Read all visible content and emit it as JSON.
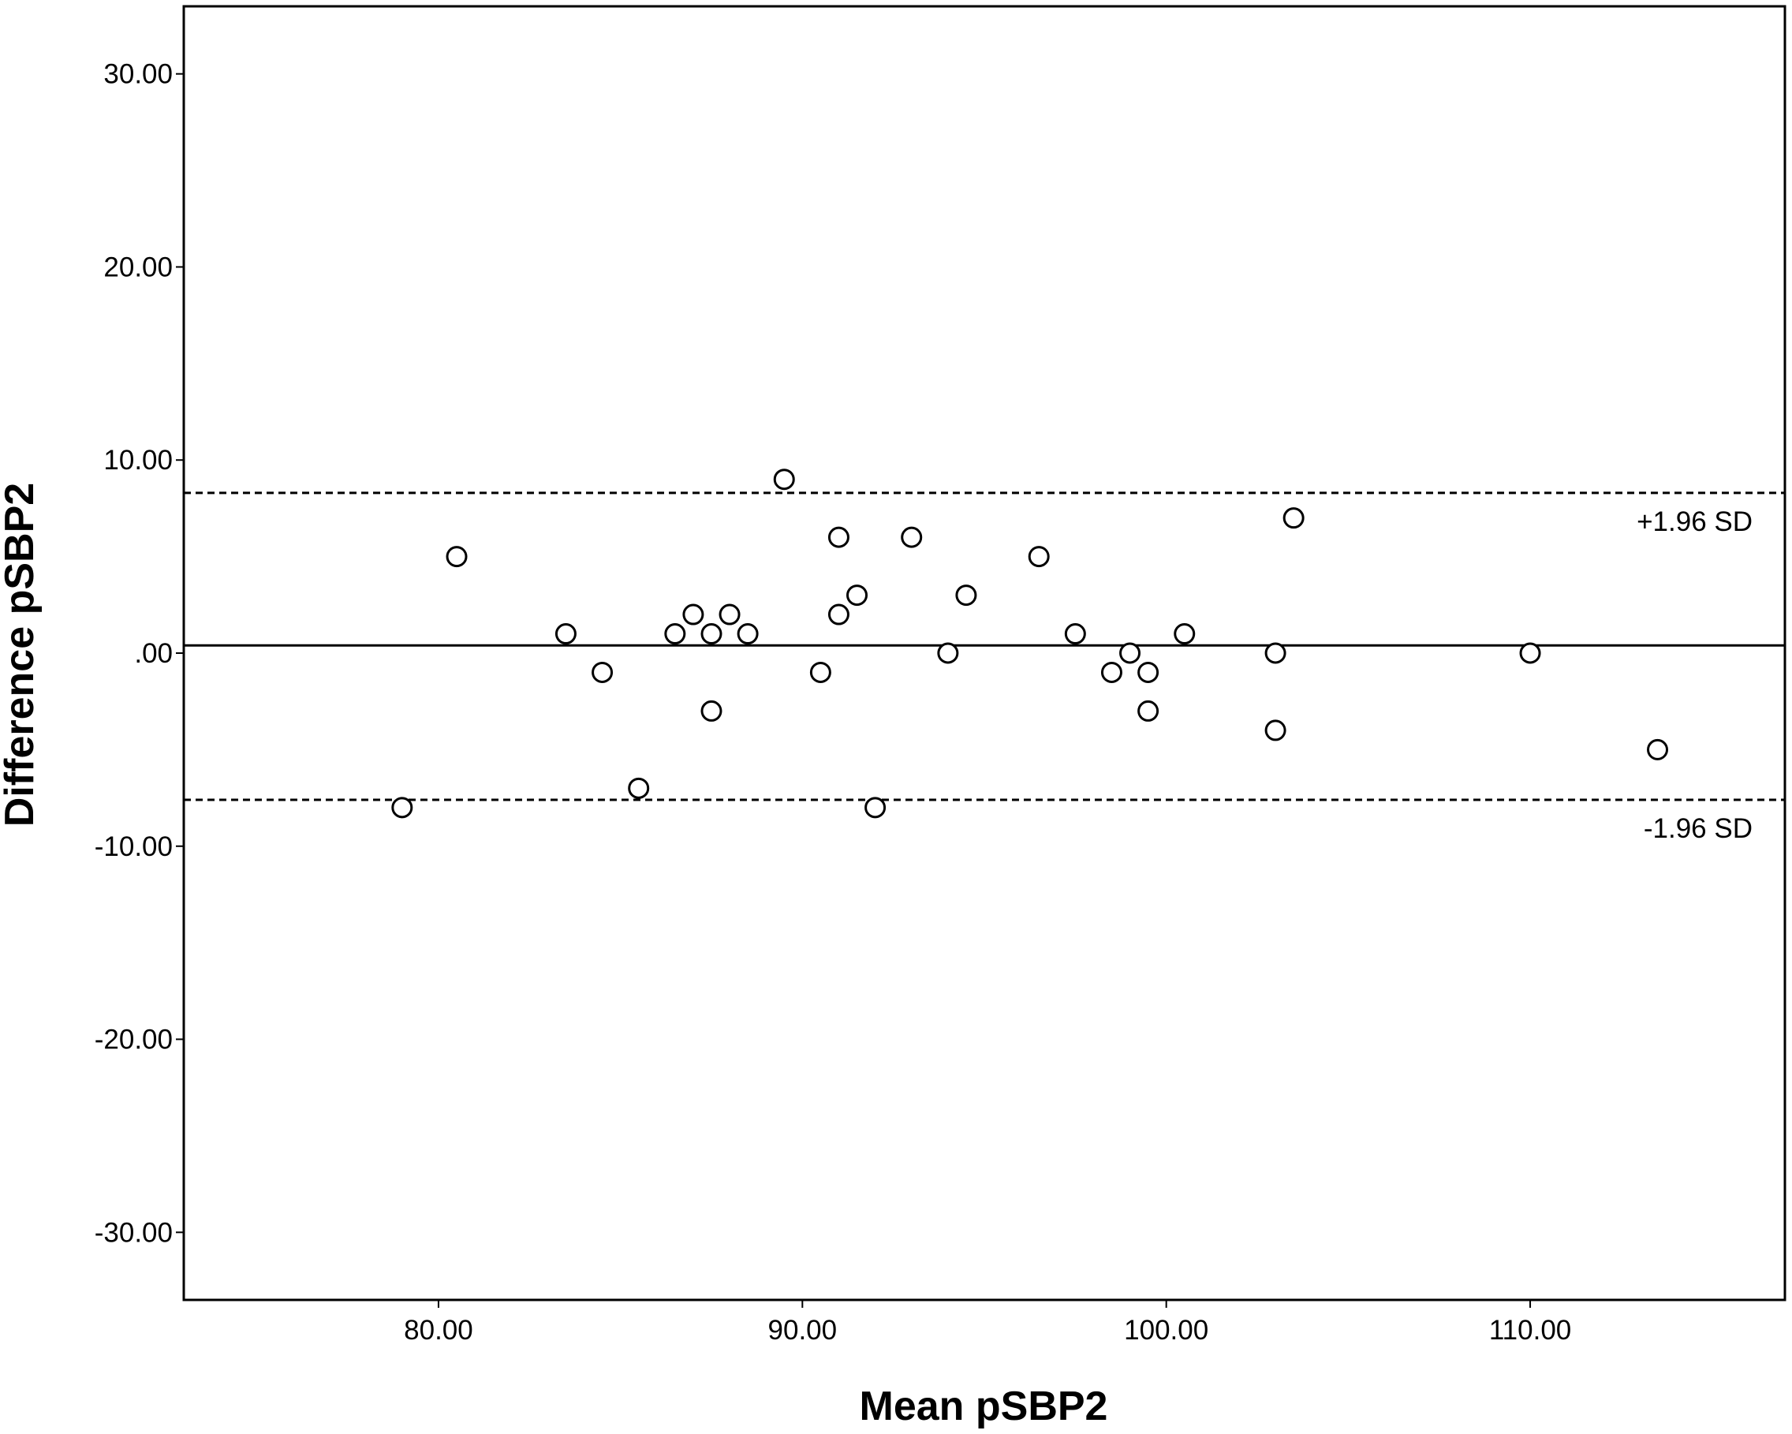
{
  "chart_data": {
    "type": "scatter",
    "xlabel": "Mean pSBP2",
    "ylabel": "Difference pSBP2",
    "xlim": [
      73,
      117
    ],
    "ylim": [
      -33.5,
      33.5
    ],
    "x_ticks": [
      {
        "value": 80,
        "label": "80.00"
      },
      {
        "value": 90,
        "label": "90.00"
      },
      {
        "value": 100,
        "label": "100.00"
      },
      {
        "value": 110,
        "label": "110.00"
      }
    ],
    "y_ticks": [
      {
        "value": 30,
        "label": "30.00"
      },
      {
        "value": 20,
        "label": "20.00"
      },
      {
        "value": 10,
        "label": "10.00"
      },
      {
        "value": 0,
        "label": ".00"
      },
      {
        "value": -10,
        "label": "-10.00"
      },
      {
        "value": -20,
        "label": "-20.00"
      },
      {
        "value": -30,
        "label": "-30.00"
      }
    ],
    "grid": false,
    "legend": "none",
    "reference_lines": [
      {
        "y": 8.3,
        "style": "dashed",
        "label": "+1.96 SD"
      },
      {
        "y": 0.4,
        "style": "solid",
        "label": ""
      },
      {
        "y": -7.6,
        "style": "dashed",
        "label": "-1.96 SD"
      }
    ],
    "points": [
      {
        "x": 79.0,
        "y": -8
      },
      {
        "x": 80.5,
        "y": 5
      },
      {
        "x": 83.5,
        "y": 1
      },
      {
        "x": 84.5,
        "y": -1
      },
      {
        "x": 85.5,
        "y": -7
      },
      {
        "x": 86.5,
        "y": 1
      },
      {
        "x": 87.0,
        "y": 2
      },
      {
        "x": 87.5,
        "y": 1
      },
      {
        "x": 87.5,
        "y": -3
      },
      {
        "x": 88.0,
        "y": 2
      },
      {
        "x": 88.5,
        "y": 1
      },
      {
        "x": 89.5,
        "y": 9
      },
      {
        "x": 90.5,
        "y": -1
      },
      {
        "x": 91.0,
        "y": 6
      },
      {
        "x": 91.0,
        "y": 2
      },
      {
        "x": 91.5,
        "y": 3
      },
      {
        "x": 92.0,
        "y": -8
      },
      {
        "x": 93.0,
        "y": 6
      },
      {
        "x": 94.0,
        "y": 0
      },
      {
        "x": 94.5,
        "y": 3
      },
      {
        "x": 96.5,
        "y": 5
      },
      {
        "x": 97.5,
        "y": 1
      },
      {
        "x": 98.5,
        "y": -1
      },
      {
        "x": 99.0,
        "y": 0
      },
      {
        "x": 99.5,
        "y": -1
      },
      {
        "x": 99.5,
        "y": -3
      },
      {
        "x": 100.5,
        "y": 1
      },
      {
        "x": 103.0,
        "y": 0
      },
      {
        "x": 103.0,
        "y": -4
      },
      {
        "x": 103.5,
        "y": 7
      },
      {
        "x": 110.0,
        "y": 0
      },
      {
        "x": 113.5,
        "y": -5
      }
    ]
  }
}
